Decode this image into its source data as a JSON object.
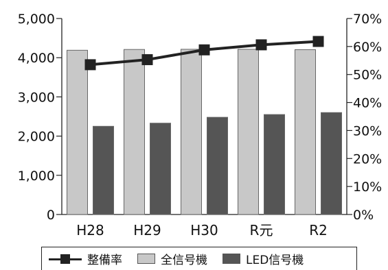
{
  "chart_data": {
    "type": "bar",
    "categories": [
      "H28",
      "H29",
      "H30",
      "R元",
      "R2"
    ],
    "left_axis": {
      "ticks": [
        "0",
        "1,000",
        "2,000",
        "3,000",
        "4,000",
        "5,000"
      ],
      "ylim": [
        0,
        5000
      ]
    },
    "right_axis": {
      "ticks": [
        "0%",
        "10%",
        "20%",
        "30%",
        "40%",
        "50%",
        "60%",
        "70%"
      ],
      "ylim": [
        0,
        70
      ]
    },
    "series": [
      {
        "name": "全信号機",
        "type": "bar",
        "axis": "left",
        "color": "#c8c8c8",
        "values": [
          4190,
          4210,
          4215,
          4215,
          4205
        ]
      },
      {
        "name": "LED信号機",
        "type": "bar",
        "axis": "left",
        "color": "#555555",
        "values": [
          2250,
          2330,
          2480,
          2550,
          2600
        ]
      },
      {
        "name": "整備率",
        "type": "line",
        "axis": "right",
        "color": "#222222",
        "marker": "square",
        "values": [
          53.5,
          55.3,
          58.8,
          60.6,
          61.8
        ]
      }
    ],
    "grid": false,
    "legend_position": "bottom"
  }
}
